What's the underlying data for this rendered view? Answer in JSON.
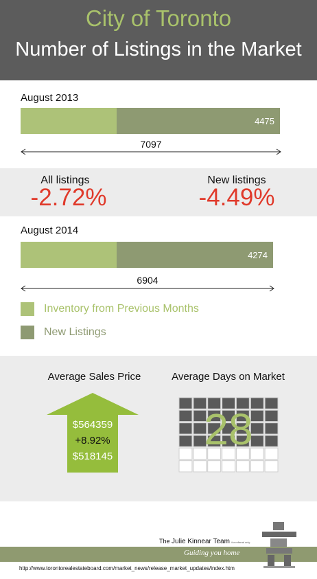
{
  "header": {
    "city": "City of Toronto",
    "subtitle": "Number of Listings in the Market"
  },
  "chart_data": {
    "type": "bar",
    "series": [
      {
        "name": "Inventory from Previous Months",
        "color": "#adc278"
      },
      {
        "name": "New Listings",
        "color": "#8e9a72"
      }
    ],
    "periods": [
      {
        "label": "August 2013",
        "total": 7097,
        "new_listings": 4475,
        "total_text": "7097",
        "new_text": "4475"
      },
      {
        "label": "August 2014",
        "total": 6904,
        "new_listings": 4274,
        "total_text": "6904",
        "new_text": "4274"
      }
    ]
  },
  "changes": {
    "all_label": "All listings",
    "all_value": "-2.72%",
    "new_label": "New listings",
    "new_value": "-4.49%"
  },
  "legend": {
    "prev": "Inventory from Previous Months",
    "new": "New Listings"
  },
  "stats": {
    "price_title": "Average Sales Price",
    "price_current": "$564359",
    "price_change": "+8.92%",
    "price_previous": "$518145",
    "days_title": "Average Days on Market",
    "days_value": "28"
  },
  "footer": {
    "team_prefix": "The",
    "team_name": "Julie Kinnear Team",
    "team_note": "for referral only",
    "tagline": "Guiding you home",
    "url": "http://www.torontorealestateboard.com/market_news/release_market_updates/index.htm"
  },
  "colors": {
    "header_bg": "#5c5c5c",
    "accent_green": "#a9c26b",
    "bar_prev": "#adc278",
    "bar_new": "#8e9a72",
    "negative": "#e03a2b",
    "band_bg": "#ececec"
  }
}
